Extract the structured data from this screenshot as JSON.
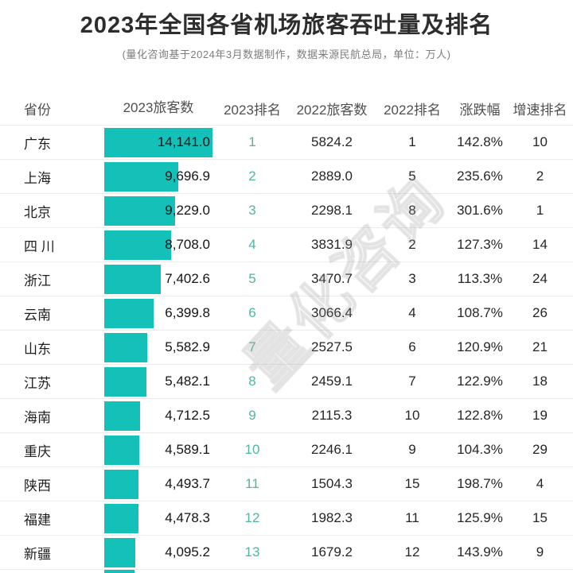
{
  "page": {
    "title": "2023年全国各省机场旅客吞吐量及排名",
    "subtitle": "(量化咨询基于2024年3月数据制作，数据来源民航总局，单位：万人)",
    "watermark": "量化咨询"
  },
  "colors": {
    "bar": "#14c1b8",
    "rank_2023_accent": "#4eb7a0",
    "title_text": "#2d2d2d",
    "subtitle_text": "#7d7d7d",
    "header_text": "#4f4f4f",
    "body_text": "#262626",
    "row_divider": "#ebebeb",
    "background": "#ffffff"
  },
  "chart_data": {
    "type": "bar",
    "title": "2023年全国各省机场旅客吞吐量及排名",
    "subtitle": "(量化咨询基于2024年3月数据制作，数据来源民航总局，单位：万人)",
    "unit": "万人",
    "legend_position": "none",
    "grid": false,
    "xlim": [
      0,
      14141
    ],
    "max_value": 14141.0,
    "columns": [
      "省份",
      "2023旅客数",
      "2023排名",
      "2022旅客数",
      "2022排名",
      "涨跌幅",
      "增速排名"
    ],
    "categories": [
      "广东",
      "上海",
      "北京",
      "四 川",
      "浙江",
      "云南",
      "山东",
      "江苏",
      "海南",
      "重庆",
      "陕西",
      "福建",
      "新疆"
    ],
    "values": [
      14141.0,
      9696.9,
      9229.0,
      8708.0,
      7402.6,
      6399.8,
      5582.9,
      5482.1,
      4712.5,
      4589.1,
      4493.7,
      4478.3,
      4095.2
    ],
    "rows": [
      {
        "province": "广东",
        "passengers_2023_label": "14,141.0",
        "passengers_2023": 14141.0,
        "rank_2023": "1",
        "passengers_2022": "5824.2",
        "rank_2022": "1",
        "change_pct": "142.8%",
        "growth_rank": "10"
      },
      {
        "province": "上海",
        "passengers_2023_label": "9,696.9",
        "passengers_2023": 9696.9,
        "rank_2023": "2",
        "passengers_2022": "2889.0",
        "rank_2022": "5",
        "change_pct": "235.6%",
        "growth_rank": "2"
      },
      {
        "province": "北京",
        "passengers_2023_label": "9,229.0",
        "passengers_2023": 9229.0,
        "rank_2023": "3",
        "passengers_2022": "2298.1",
        "rank_2022": "8",
        "change_pct": "301.6%",
        "growth_rank": "1"
      },
      {
        "province": "四 川",
        "passengers_2023_label": "8,708.0",
        "passengers_2023": 8708.0,
        "rank_2023": "4",
        "passengers_2022": "3831.9",
        "rank_2022": "2",
        "change_pct": "127.3%",
        "growth_rank": "14"
      },
      {
        "province": "浙江",
        "passengers_2023_label": "7,402.6",
        "passengers_2023": 7402.6,
        "rank_2023": "5",
        "passengers_2022": "3470.7",
        "rank_2022": "3",
        "change_pct": "113.3%",
        "growth_rank": "24"
      },
      {
        "province": "云南",
        "passengers_2023_label": "6,399.8",
        "passengers_2023": 6399.8,
        "rank_2023": "6",
        "passengers_2022": "3066.4",
        "rank_2022": "4",
        "change_pct": "108.7%",
        "growth_rank": "26"
      },
      {
        "province": "山东",
        "passengers_2023_label": "5,582.9",
        "passengers_2023": 5582.9,
        "rank_2023": "7",
        "passengers_2022": "2527.5",
        "rank_2022": "6",
        "change_pct": "120.9%",
        "growth_rank": "21"
      },
      {
        "province": "江苏",
        "passengers_2023_label": "5,482.1",
        "passengers_2023": 5482.1,
        "rank_2023": "8",
        "passengers_2022": "2459.1",
        "rank_2022": "7",
        "change_pct": "122.9%",
        "growth_rank": "18"
      },
      {
        "province": "海南",
        "passengers_2023_label": "4,712.5",
        "passengers_2023": 4712.5,
        "rank_2023": "9",
        "passengers_2022": "2115.3",
        "rank_2022": "10",
        "change_pct": "122.8%",
        "growth_rank": "19"
      },
      {
        "province": "重庆",
        "passengers_2023_label": "4,589.1",
        "passengers_2023": 4589.1,
        "rank_2023": "10",
        "passengers_2022": "2246.1",
        "rank_2022": "9",
        "change_pct": "104.3%",
        "growth_rank": "29"
      },
      {
        "province": "陕西",
        "passengers_2023_label": "4,493.7",
        "passengers_2023": 4493.7,
        "rank_2023": "11",
        "passengers_2022": "1504.3",
        "rank_2022": "15",
        "change_pct": "198.7%",
        "growth_rank": "4"
      },
      {
        "province": "福建",
        "passengers_2023_label": "4,478.3",
        "passengers_2023": 4478.3,
        "rank_2023": "12",
        "passengers_2022": "1982.3",
        "rank_2022": "11",
        "change_pct": "125.9%",
        "growth_rank": "15"
      },
      {
        "province": "新疆",
        "passengers_2023_label": "4,095.2",
        "passengers_2023": 4095.2,
        "rank_2023": "13",
        "passengers_2022": "1679.2",
        "rank_2022": "12",
        "change_pct": "143.9%",
        "growth_rank": "9"
      }
    ]
  }
}
